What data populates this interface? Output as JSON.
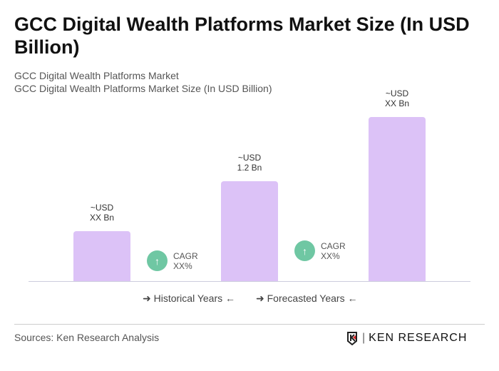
{
  "title": "GCC Digital Wealth Platforms Market Size (In USD Billion)",
  "subtitle1": "GCC Digital Wealth Platforms Market",
  "subtitle2": "GCC Digital Wealth Platforms Market Size (In USD Billion)",
  "chart_data": {
    "type": "bar",
    "categories": [
      "",
      "",
      ""
    ],
    "values": [
      null,
      1.2,
      null
    ],
    "data_labels": [
      {
        "l1": "~USD",
        "l2": "XX Bn"
      },
      {
        "l1": "~USD",
        "l2": "1.2 Bn"
      },
      {
        "l1": "~USD",
        "l2": "XX Bn"
      }
    ],
    "annotations": [
      {
        "l1": "CAGR",
        "l2": "XX%"
      },
      {
        "l1": "CAGR",
        "l2": "XX%"
      }
    ],
    "legend": [
      "Historical Years",
      "Forecasted Years"
    ],
    "bar_color": "#dcc2f7",
    "cagr_color": "#6fc7a3"
  },
  "footer": {
    "sources": "Sources: Ken Research Analysis",
    "logo": "KEN RESEARCH"
  }
}
